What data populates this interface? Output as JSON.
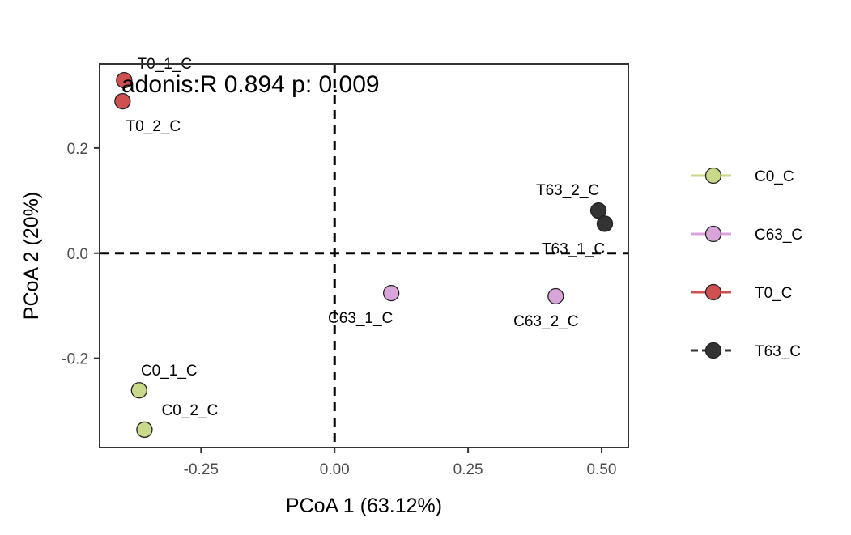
{
  "chart_data": {
    "type": "scatter",
    "title": "",
    "xlabel": "PCoA 1 (63.12%)",
    "ylabel": "PCoA 2 (20%)",
    "xlim": [
      -0.44,
      0.55
    ],
    "ylim": [
      -0.37,
      0.36
    ],
    "x_ticks": [
      -0.25,
      0.0,
      0.25,
      0.5
    ],
    "x_tick_labels": [
      "-0.25",
      "0.00",
      "0.25",
      "0.50"
    ],
    "y_ticks": [
      -0.2,
      0.0,
      0.2
    ],
    "y_tick_labels": [
      "-0.2",
      "0.0",
      "0.2"
    ],
    "grid": false,
    "legend_position": "right",
    "reference_lines": {
      "x": 0,
      "y": 0,
      "style": "dashed"
    },
    "annotation": "adonis:R 0.894 p: 0.009",
    "series": [
      {
        "name": "C0_C",
        "color": "#c8d98a",
        "points": [
          {
            "label": "C0_1_C",
            "x": -0.366,
            "y": -0.261
          },
          {
            "label": "C0_2_C",
            "x": -0.356,
            "y": -0.336
          }
        ]
      },
      {
        "name": "C63_C",
        "color": "#d9a4da",
        "points": [
          {
            "label": "C63_1_C",
            "x": 0.106,
            "y": -0.076
          },
          {
            "label": "C63_2_C",
            "x": 0.414,
            "y": -0.082
          }
        ]
      },
      {
        "name": "T0_C",
        "color": "#d05050",
        "points": [
          {
            "label": "T0_1_C",
            "x": -0.394,
            "y": 0.329
          },
          {
            "label": "T0_2_C",
            "x": -0.397,
            "y": 0.289
          }
        ]
      },
      {
        "name": "T63_C",
        "color": "#333333",
        "points": [
          {
            "label": "T63_2_C",
            "x": 0.494,
            "y": 0.081
          },
          {
            "label": "T63_1_C",
            "x": 0.506,
            "y": 0.056
          }
        ]
      }
    ]
  }
}
